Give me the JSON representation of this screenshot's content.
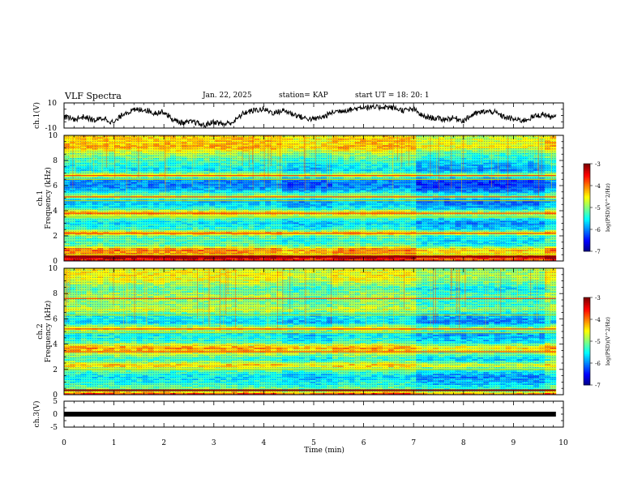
{
  "header": {
    "title": "VLF Spectra",
    "date": "Jan. 22, 2025",
    "station": "station= KAP",
    "start": "start UT =  18: 20: 1"
  },
  "chart_data": [
    {
      "type": "line",
      "name": "ch1-waveform",
      "ylabel": "ch.1(V)",
      "ylim": [
        -10,
        10
      ],
      "y_ticks": [
        "10",
        "-10"
      ],
      "xlim": [
        0,
        10
      ],
      "x_end": 9.85,
      "description_series": "noisy waveform hovering between about -9 and +8 V",
      "points": [
        [
          0,
          -1
        ],
        [
          0.2,
          -3
        ],
        [
          0.4,
          -1
        ],
        [
          0.6,
          -4
        ],
        [
          0.8,
          -2
        ],
        [
          1.0,
          -6
        ],
        [
          1.2,
          2
        ],
        [
          1.4,
          4
        ],
        [
          1.6,
          5
        ],
        [
          1.8,
          2
        ],
        [
          2.0,
          3
        ],
        [
          2.2,
          -4
        ],
        [
          2.4,
          -6
        ],
        [
          2.6,
          -5
        ],
        [
          2.8,
          -8
        ],
        [
          3.0,
          -5
        ],
        [
          3.2,
          -7
        ],
        [
          3.4,
          -5
        ],
        [
          3.6,
          2
        ],
        [
          3.8,
          4
        ],
        [
          4.0,
          5
        ],
        [
          4.2,
          2
        ],
        [
          4.4,
          4
        ],
        [
          4.6,
          1
        ],
        [
          4.8,
          -2
        ],
        [
          5.0,
          -3
        ],
        [
          5.2,
          -1
        ],
        [
          5.4,
          3
        ],
        [
          5.6,
          4
        ],
        [
          5.8,
          5
        ],
        [
          6.0,
          7
        ],
        [
          6.2,
          6
        ],
        [
          6.4,
          7
        ],
        [
          6.6,
          6
        ],
        [
          6.8,
          4
        ],
        [
          7.0,
          5
        ],
        [
          7.2,
          -1
        ],
        [
          7.4,
          -2
        ],
        [
          7.6,
          -3
        ],
        [
          7.8,
          -2
        ],
        [
          8.0,
          -4
        ],
        [
          8.2,
          1
        ],
        [
          8.4,
          3
        ],
        [
          8.6,
          3
        ],
        [
          8.8,
          -1
        ],
        [
          9.0,
          -3
        ],
        [
          9.2,
          -4
        ],
        [
          9.4,
          -1
        ],
        [
          9.6,
          1
        ],
        [
          9.8,
          -2
        ],
        [
          9.85,
          -1
        ]
      ]
    },
    {
      "type": "heatmap",
      "name": "ch1-spectrogram",
      "ylabel_line1": "ch.1",
      "ylabel_line2": "Frequency (kHz)",
      "ylim": [
        0,
        10
      ],
      "y_ticks": [
        "0",
        "2",
        "4",
        "6",
        "8",
        "10"
      ],
      "xlim": [
        0,
        10
      ],
      "x_end": 9.85,
      "colorbar": {
        "label": "log(PSD)(V^2/Hz)",
        "range": [
          -7,
          -3
        ],
        "ticks": [
          "-3",
          "-4",
          "-5",
          "-6",
          "-7"
        ]
      },
      "band_profile_logpsd": [
        [
          0,
          -3.6
        ],
        [
          0.3,
          -3.2
        ],
        [
          0.6,
          -4.2
        ],
        [
          0.9,
          -3.9
        ],
        [
          1.2,
          -5.0
        ],
        [
          1.6,
          -5.3
        ],
        [
          2.0,
          -5.0
        ],
        [
          2.2,
          -4.0
        ],
        [
          2.5,
          -5.2
        ],
        [
          3.0,
          -5.6
        ],
        [
          3.5,
          -5.0
        ],
        [
          3.8,
          -4.1
        ],
        [
          4.2,
          -5.4
        ],
        [
          4.8,
          -5.8
        ],
        [
          5.1,
          -4.6
        ],
        [
          5.6,
          -5.7
        ],
        [
          6.0,
          -6.0
        ],
        [
          6.5,
          -5.9
        ],
        [
          6.8,
          -4.4
        ],
        [
          7.2,
          -5.6
        ],
        [
          8.0,
          -5.2
        ],
        [
          8.6,
          -4.8
        ],
        [
          9.0,
          -4.2
        ],
        [
          9.5,
          -4.3
        ],
        [
          10,
          -4.4
        ]
      ],
      "horizontal_lines_khz": [
        0.5,
        2.2,
        3.5,
        3.8,
        4.8,
        5.1,
        6.5,
        6.8
      ]
    },
    {
      "type": "heatmap",
      "name": "ch2-spectrogram",
      "ylabel_line1": "ch.2",
      "ylabel_line2": "Frequency (kHz)",
      "ylim": [
        0,
        10
      ],
      "y_ticks": [
        "0",
        "2",
        "4",
        "6",
        "8",
        "10"
      ],
      "xlim": [
        0,
        10
      ],
      "x_end": 9.85,
      "colorbar": {
        "label": "log(PSD)(V^2/Hz)",
        "range": [
          -7,
          -3
        ],
        "ticks": [
          "-3",
          "-4",
          "-5",
          "-6",
          "-7"
        ]
      },
      "band_profile_logpsd": [
        [
          0,
          -3.5
        ],
        [
          0.3,
          -4.8
        ],
        [
          0.8,
          -5.3
        ],
        [
          1.4,
          -5.6
        ],
        [
          2.0,
          -5.0
        ],
        [
          2.3,
          -4.2
        ],
        [
          2.8,
          -5.4
        ],
        [
          3.3,
          -4.6
        ],
        [
          3.7,
          -4.0
        ],
        [
          4.2,
          -5.3
        ],
        [
          4.8,
          -5.5
        ],
        [
          5.2,
          -4.4
        ],
        [
          5.7,
          -5.6
        ],
        [
          6.3,
          -5.4
        ],
        [
          6.7,
          -4.6
        ],
        [
          7.2,
          -5.0
        ],
        [
          7.8,
          -4.8
        ],
        [
          8.4,
          -5.2
        ],
        [
          9.0,
          -4.6
        ],
        [
          9.5,
          -4.5
        ],
        [
          10,
          -4.6
        ]
      ],
      "horizontal_lines_khz": [
        2.0,
        3.4,
        4.9,
        5.2,
        6.3,
        7.6
      ]
    },
    {
      "type": "line",
      "name": "ch3-waveform",
      "ylabel": "ch.3(V)",
      "ylim": [
        -5,
        5
      ],
      "y_ticks": [
        "5",
        "0",
        "-5"
      ],
      "xlim": [
        0,
        10
      ],
      "x_end": 9.85,
      "xlabel": "Time (min)",
      "x_ticks": [
        "0",
        "1",
        "2",
        "3",
        "4",
        "5",
        "6",
        "7",
        "8",
        "9",
        "10"
      ],
      "level": 0
    }
  ]
}
